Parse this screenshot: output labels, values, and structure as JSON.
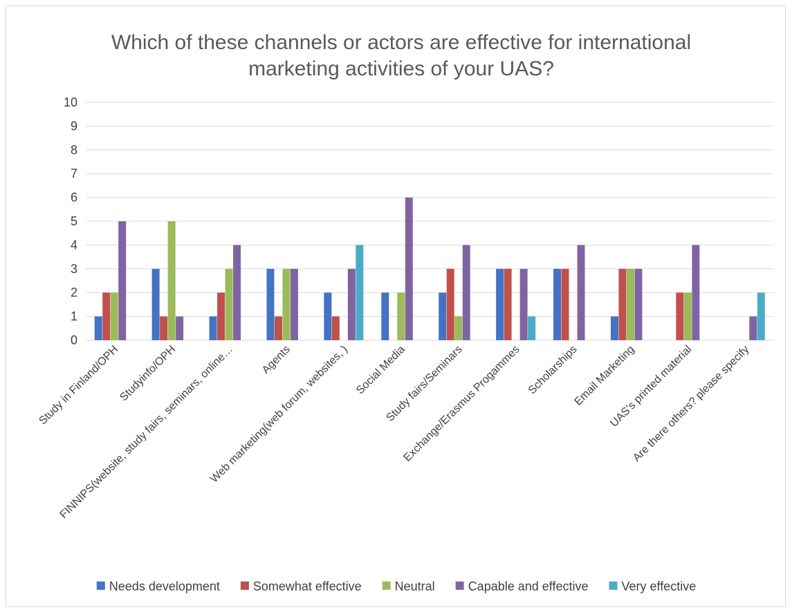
{
  "chart_data": {
    "type": "bar",
    "title_lines": [
      "Which of these channels or actors are effective for international",
      "marketing activities of your UAS?"
    ],
    "categories": [
      "Study in Finland/OPH",
      "Studyinfo/OPH",
      "FINNIPS(website, study fairs, seminars, online…",
      "Agents",
      "Web marketing(web forum, websites, )",
      "Social Media",
      "Study fairs/Seminars",
      "Exchange/Erasmus Progammes",
      "Scholarships",
      "Email Marketing",
      "UAS's printed material",
      "Are there others? please specify"
    ],
    "series": [
      {
        "name": "Needs development",
        "color": "#4472C4",
        "values": [
          1,
          3,
          1,
          3,
          2,
          2,
          2,
          3,
          3,
          1,
          0,
          0
        ]
      },
      {
        "name": "Somewhat effective",
        "color": "#C0504D",
        "values": [
          2,
          1,
          2,
          1,
          1,
          0,
          3,
          3,
          3,
          3,
          2,
          0
        ]
      },
      {
        "name": "Neutral",
        "color": "#9BBB59",
        "values": [
          2,
          5,
          3,
          3,
          0,
          2,
          1,
          0,
          0,
          3,
          2,
          0
        ]
      },
      {
        "name": "Capable and effective",
        "color": "#8064A2",
        "values": [
          5,
          1,
          4,
          3,
          3,
          6,
          4,
          3,
          4,
          3,
          4,
          1
        ]
      },
      {
        "name": "Very effective",
        "color": "#4BACC6",
        "values": [
          0,
          0,
          0,
          0,
          4,
          0,
          0,
          1,
          0,
          0,
          0,
          2
        ]
      }
    ],
    "ylim": [
      0,
      10
    ],
    "yticks": [
      0,
      1,
      2,
      3,
      4,
      5,
      6,
      7,
      8,
      9,
      10
    ],
    "grid": true,
    "legend_position": "bottom"
  }
}
